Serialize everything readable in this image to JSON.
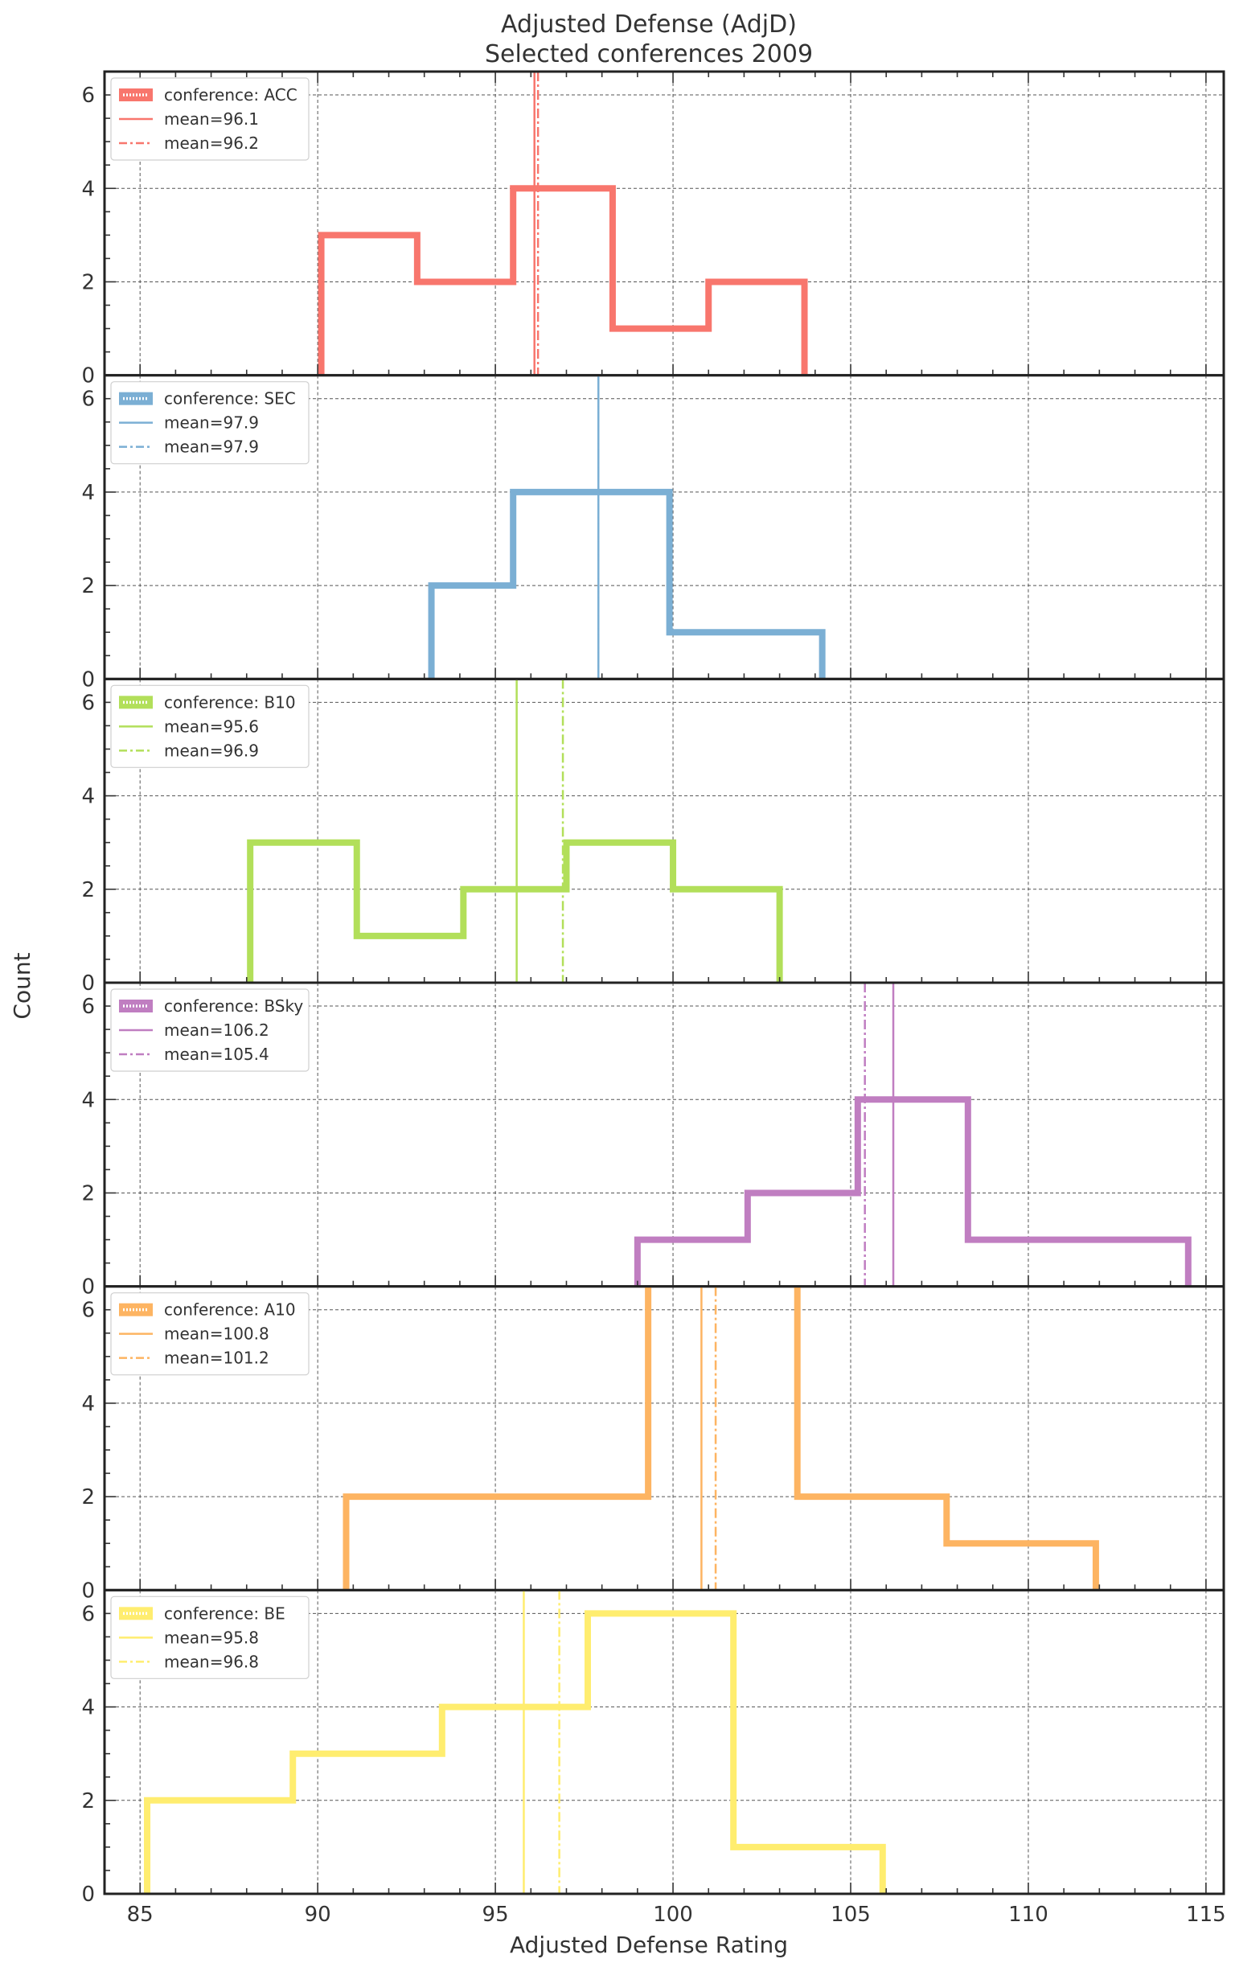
{
  "figure": {
    "title": "Adjusted Defense (AdjD)",
    "subtitle": "Selected conferences 2009",
    "xlabel": "Adjusted Defense Rating",
    "ylabel": "Count"
  },
  "chart_data": {
    "type": "histogram",
    "shared_x": true,
    "xlim": [
      84,
      115.5
    ],
    "ylim": [
      0,
      6.5
    ],
    "x_ticks": [
      85,
      90,
      95,
      100,
      105,
      110,
      115
    ],
    "y_ticks": [
      0,
      2,
      4,
      6
    ],
    "grid": true,
    "legend_placement": "top-left",
    "panels": [
      {
        "conference": "ACC",
        "legend_label": "conference: ACC",
        "color": "#F8766D",
        "bin_edges": [
          90.1,
          92.8,
          95.5,
          98.3,
          101.0,
          103.7
        ],
        "counts": [
          3,
          2,
          4,
          1,
          2
        ],
        "mean_solid": 96.1,
        "mean_dashdot": 96.2,
        "mean_solid_label": "mean=96.1",
        "mean_dashdot_label": "mean=96.2"
      },
      {
        "conference": "SEC",
        "legend_label": "conference: SEC",
        "color": "#7BAFD4",
        "bin_edges": [
          93.2,
          95.5,
          99.9,
          104.2
        ],
        "counts": [
          2,
          4,
          1
        ],
        "mean_solid": 97.9,
        "mean_dashdot": 97.9,
        "mean_solid_label": "mean=97.9",
        "mean_dashdot_label": "mean=97.9"
      },
      {
        "conference": "B10",
        "legend_label": "conference: B10",
        "color": "#B2DF5A",
        "bin_edges": [
          88.1,
          91.1,
          94.1,
          97.0,
          100.0,
          103.0
        ],
        "counts": [
          3,
          1,
          2,
          3,
          2
        ],
        "mean_solid": 95.6,
        "mean_dashdot": 96.9,
        "mean_solid_label": "mean=95.6",
        "mean_dashdot_label": "mean=96.9"
      },
      {
        "conference": "BSky",
        "legend_label": "conference: BSky",
        "color": "#C07EC1",
        "bin_edges": [
          99.0,
          102.1,
          105.2,
          108.3,
          111.4,
          114.5
        ],
        "counts": [
          1,
          2,
          4,
          1,
          1
        ],
        "mean_solid": 106.2,
        "mean_dashdot": 105.4,
        "mean_solid_label": "mean=106.2",
        "mean_dashdot_label": "mean=105.4"
      },
      {
        "conference": "A10",
        "legend_label": "conference: A10",
        "color": "#FDB462",
        "bin_edges": [
          90.8,
          95.0,
          99.3,
          103.5,
          107.7,
          111.9
        ],
        "counts": [
          2,
          2,
          7,
          2,
          1
        ],
        "mean_solid": 100.8,
        "mean_dashdot": 101.2,
        "mean_solid_label": "mean=100.8",
        "mean_dashdot_label": "mean=101.2"
      },
      {
        "conference": "BE",
        "legend_label": "conference: BE",
        "color": "#FFED6F",
        "bin_edges": [
          85.2,
          89.3,
          93.5,
          97.6,
          101.7,
          105.9
        ],
        "counts": [
          2,
          3,
          4,
          6,
          1
        ],
        "mean_solid": 95.8,
        "mean_dashdot": 96.8,
        "mean_solid_label": "mean=95.8",
        "mean_dashdot_label": "mean=96.8"
      }
    ]
  }
}
